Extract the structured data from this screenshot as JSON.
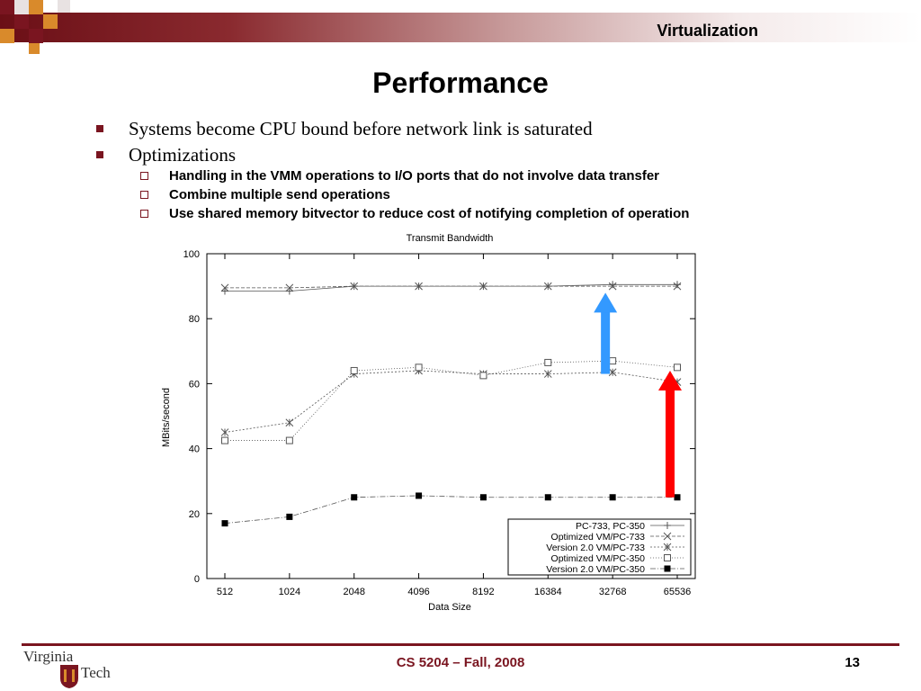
{
  "header": {
    "title": "Virtualization"
  },
  "slide": {
    "title": "Performance"
  },
  "bullets": [
    {
      "text": "Systems become CPU bound before network link is saturated"
    },
    {
      "text": "Optimizations"
    }
  ],
  "sub_bullets": [
    {
      "text": "Handling in the VMM operations to I/O ports that do not involve data transfer"
    },
    {
      "text": "Combine multiple send operations"
    },
    {
      "text": "Use shared memory bitvector to reduce cost of notifying completion of operation"
    }
  ],
  "chart_data": {
    "type": "line",
    "title": "Transmit Bandwidth",
    "xlabel": "Data Size",
    "ylabel": "MBits/second",
    "categories": [
      "512",
      "1024",
      "2048",
      "4096",
      "8192",
      "16384",
      "32768",
      "65536"
    ],
    "ylim": [
      0,
      100
    ],
    "yticks": [
      "0",
      "20",
      "40",
      "60",
      "80",
      "100"
    ],
    "grid": false,
    "legend_position": "bottom-right",
    "series": [
      {
        "name": "PC-733, PC-350",
        "marker": "plus",
        "values": [
          88.5,
          88.5,
          90,
          90,
          90,
          90,
          90.5,
          90.5
        ]
      },
      {
        "name": "Optimized VM/PC-733",
        "marker": "x",
        "values": [
          89.5,
          89.5,
          90,
          90,
          90,
          90,
          90,
          90
        ]
      },
      {
        "name": "Version 2.0 VM/PC-733",
        "marker": "asterisk",
        "values": [
          45,
          48,
          63,
          64,
          63,
          63,
          63.5,
          60.5
        ]
      },
      {
        "name": "Optimized VM/PC-350",
        "marker": "open-square",
        "values": [
          42.5,
          42.5,
          64,
          65,
          62.5,
          66.5,
          67,
          65
        ]
      },
      {
        "name": "Version 2.0 VM/PC-350",
        "marker": "filled-square",
        "values": [
          17,
          19,
          25,
          25.5,
          25,
          25,
          25,
          25
        ]
      }
    ],
    "annotations": [
      {
        "type": "arrow",
        "color": "#3399ff",
        "from_value": 63,
        "to_value": 88,
        "category": "32768"
      },
      {
        "type": "arrow",
        "color": "#ff0000",
        "from_value": 25,
        "to_value": 64,
        "category": "65536"
      }
    ]
  },
  "footer": {
    "course": "CS 5204 – Fall, 2008",
    "page": "13",
    "logo_line1": "Virginia",
    "logo_line2": "Tech"
  },
  "colors": {
    "accent": "#7a1520",
    "blue_arrow": "#3399ff",
    "red_arrow": "#ff0000"
  }
}
